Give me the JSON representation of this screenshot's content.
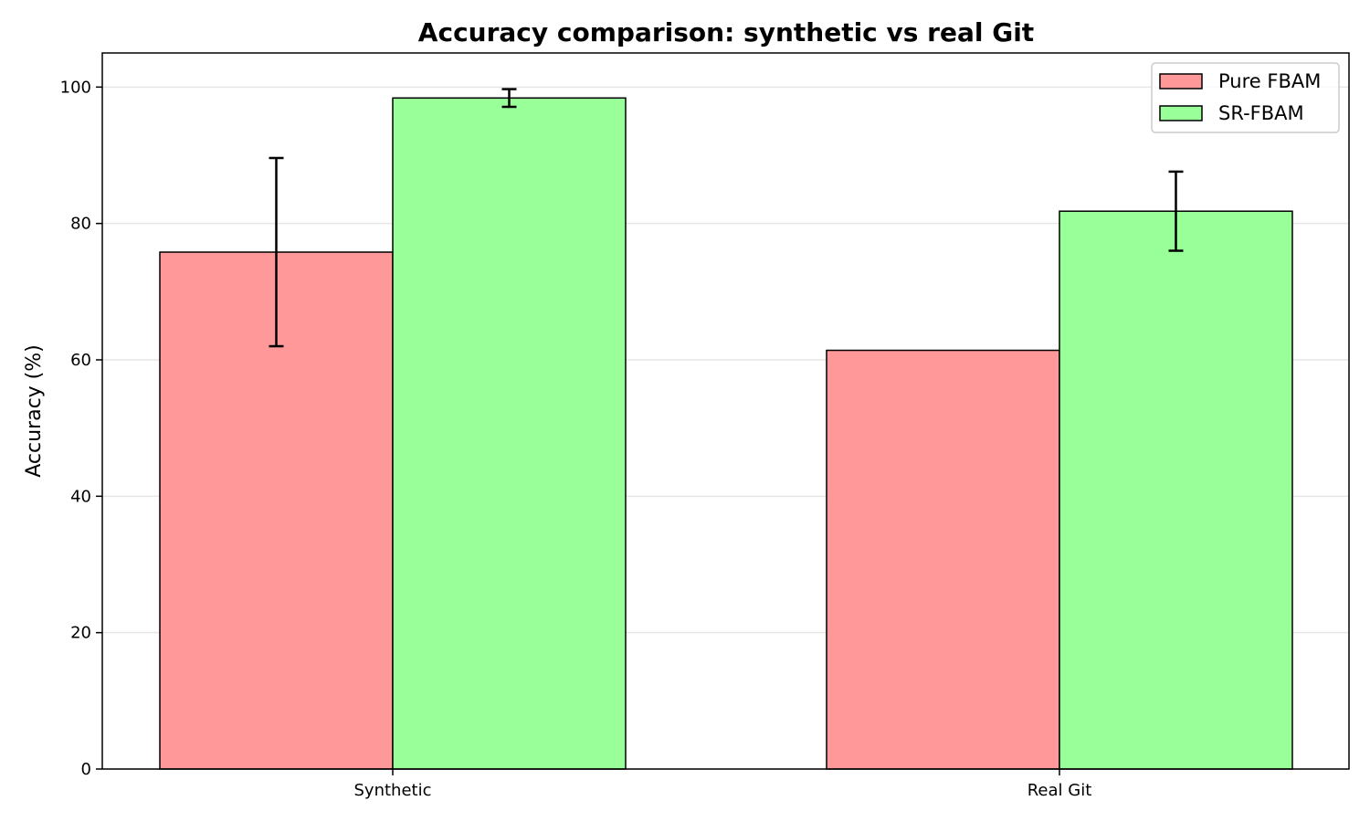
{
  "chart_data": {
    "type": "bar",
    "title": "Accuracy comparison: synthetic vs real Git",
    "xlabel": "",
    "ylabel": "Accuracy (%)",
    "categories": [
      "Synthetic",
      "Real Git"
    ],
    "series": [
      {
        "name": "Pure FBAM",
        "values": [
          75.8,
          61.4
        ],
        "errors": [
          13.8,
          null
        ],
        "color": "#ff9999"
      },
      {
        "name": "SR-FBAM",
        "values": [
          98.4,
          81.8
        ],
        "errors": [
          1.3,
          5.8
        ],
        "color": "#99ff99"
      }
    ],
    "ylim": [
      0,
      105
    ],
    "yticks": [
      0,
      20,
      40,
      60,
      80,
      100
    ],
    "grid": "y",
    "legend": "top-right"
  }
}
